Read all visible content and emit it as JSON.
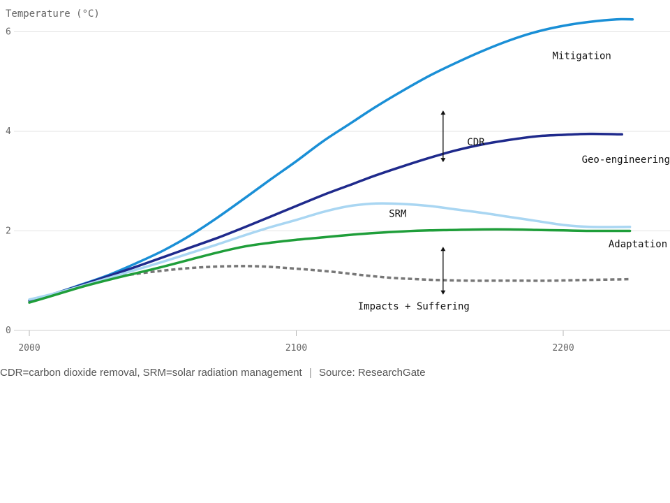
{
  "chart_data": {
    "type": "line",
    "ylabel": "Temperature (°C)",
    "xlabel": "",
    "xlim": [
      2000,
      2240
    ],
    "ylim": [
      0,
      6.4
    ],
    "x_ticks": [
      2000,
      2100,
      2200
    ],
    "y_ticks": [
      0,
      2,
      4,
      6
    ],
    "grid": true,
    "series": [
      {
        "name": "Mitigation",
        "color": "#1a8fd6",
        "dashed": false,
        "x": [
          2000,
          2010,
          2020,
          2030,
          2040,
          2050,
          2060,
          2070,
          2080,
          2090,
          2100,
          2110,
          2120,
          2130,
          2140,
          2150,
          2160,
          2170,
          2180,
          2190,
          2200,
          2210,
          2220,
          2226
        ],
        "values": [
          0.6,
          0.75,
          0.93,
          1.12,
          1.35,
          1.6,
          1.9,
          2.25,
          2.63,
          3.02,
          3.4,
          3.8,
          4.15,
          4.5,
          4.82,
          5.12,
          5.38,
          5.62,
          5.83,
          6.0,
          6.12,
          6.2,
          6.25,
          6.25
        ]
      },
      {
        "name": "Geo-engineering",
        "color": "#1f2a8c",
        "dashed": false,
        "x": [
          2000,
          2010,
          2020,
          2030,
          2040,
          2050,
          2060,
          2070,
          2080,
          2090,
          2100,
          2110,
          2120,
          2130,
          2140,
          2150,
          2160,
          2170,
          2180,
          2190,
          2200,
          2210,
          2222
        ],
        "values": [
          0.6,
          0.75,
          0.92,
          1.1,
          1.28,
          1.47,
          1.66,
          1.85,
          2.06,
          2.28,
          2.5,
          2.72,
          2.92,
          3.12,
          3.3,
          3.47,
          3.62,
          3.74,
          3.83,
          3.9,
          3.93,
          3.95,
          3.94
        ]
      },
      {
        "name": "SRM",
        "color": "#a9d6f2",
        "dashed": false,
        "x": [
          2000,
          2010,
          2020,
          2030,
          2040,
          2050,
          2060,
          2070,
          2080,
          2090,
          2100,
          2110,
          2120,
          2130,
          2140,
          2150,
          2160,
          2170,
          2180,
          2190,
          2200,
          2210,
          2225
        ],
        "values": [
          0.62,
          0.75,
          0.9,
          1.06,
          1.22,
          1.38,
          1.55,
          1.72,
          1.9,
          2.07,
          2.22,
          2.38,
          2.5,
          2.55,
          2.54,
          2.5,
          2.43,
          2.36,
          2.28,
          2.2,
          2.12,
          2.08,
          2.08
        ]
      },
      {
        "name": "Adaptation",
        "color": "#1f9e3a",
        "dashed": false,
        "x": [
          2000,
          2010,
          2020,
          2030,
          2040,
          2050,
          2060,
          2070,
          2080,
          2090,
          2100,
          2110,
          2120,
          2130,
          2140,
          2150,
          2160,
          2170,
          2180,
          2190,
          2200,
          2210,
          2225
        ],
        "values": [
          0.56,
          0.72,
          0.88,
          1.02,
          1.15,
          1.28,
          1.42,
          1.56,
          1.68,
          1.76,
          1.82,
          1.87,
          1.92,
          1.96,
          1.99,
          2.01,
          2.02,
          2.03,
          2.03,
          2.02,
          2.01,
          2.0,
          2.0
        ]
      },
      {
        "name": "Impacts + Suffering",
        "color": "#777777",
        "dashed": true,
        "x": [
          2035,
          2045,
          2055,
          2065,
          2075,
          2085,
          2095,
          2105,
          2115,
          2125,
          2135,
          2145,
          2155,
          2165,
          2175,
          2185,
          2195,
          2205,
          2215,
          2225
        ],
        "values": [
          1.1,
          1.17,
          1.23,
          1.27,
          1.29,
          1.29,
          1.26,
          1.22,
          1.17,
          1.11,
          1.06,
          1.03,
          1.01,
          1.0,
          1.0,
          1.0,
          1.0,
          1.01,
          1.02,
          1.03
        ]
      }
    ],
    "annotations": [
      {
        "text": "Mitigation",
        "x": 2218,
        "y": 5.45,
        "anchor": "end"
      },
      {
        "text": "CDR",
        "x": 2164,
        "y": 3.72,
        "anchor": "start"
      },
      {
        "text": "Geo-engineering",
        "x": 2240,
        "y": 3.37,
        "anchor": "end"
      },
      {
        "text": "SRM",
        "x": 2138,
        "y": 2.28,
        "anchor": "middle"
      },
      {
        "text": "Adaptation",
        "x": 2239,
        "y": 1.67,
        "anchor": "end"
      },
      {
        "text": "Impacts + Suffering",
        "x": 2144,
        "y": 0.42,
        "anchor": "middle"
      }
    ],
    "arrows": [
      {
        "name": "cdr-arrow",
        "x": 2155,
        "y_from": 3.38,
        "y_to": 4.42
      },
      {
        "name": "impacts-arrow",
        "x": 2155,
        "y_from": 0.72,
        "y_to": 1.68
      }
    ]
  },
  "caption": {
    "definitions": "CDR=carbon dioxide removal, SRM=solar radiation management",
    "source": "Source: ResearchGate",
    "separator": "|"
  }
}
